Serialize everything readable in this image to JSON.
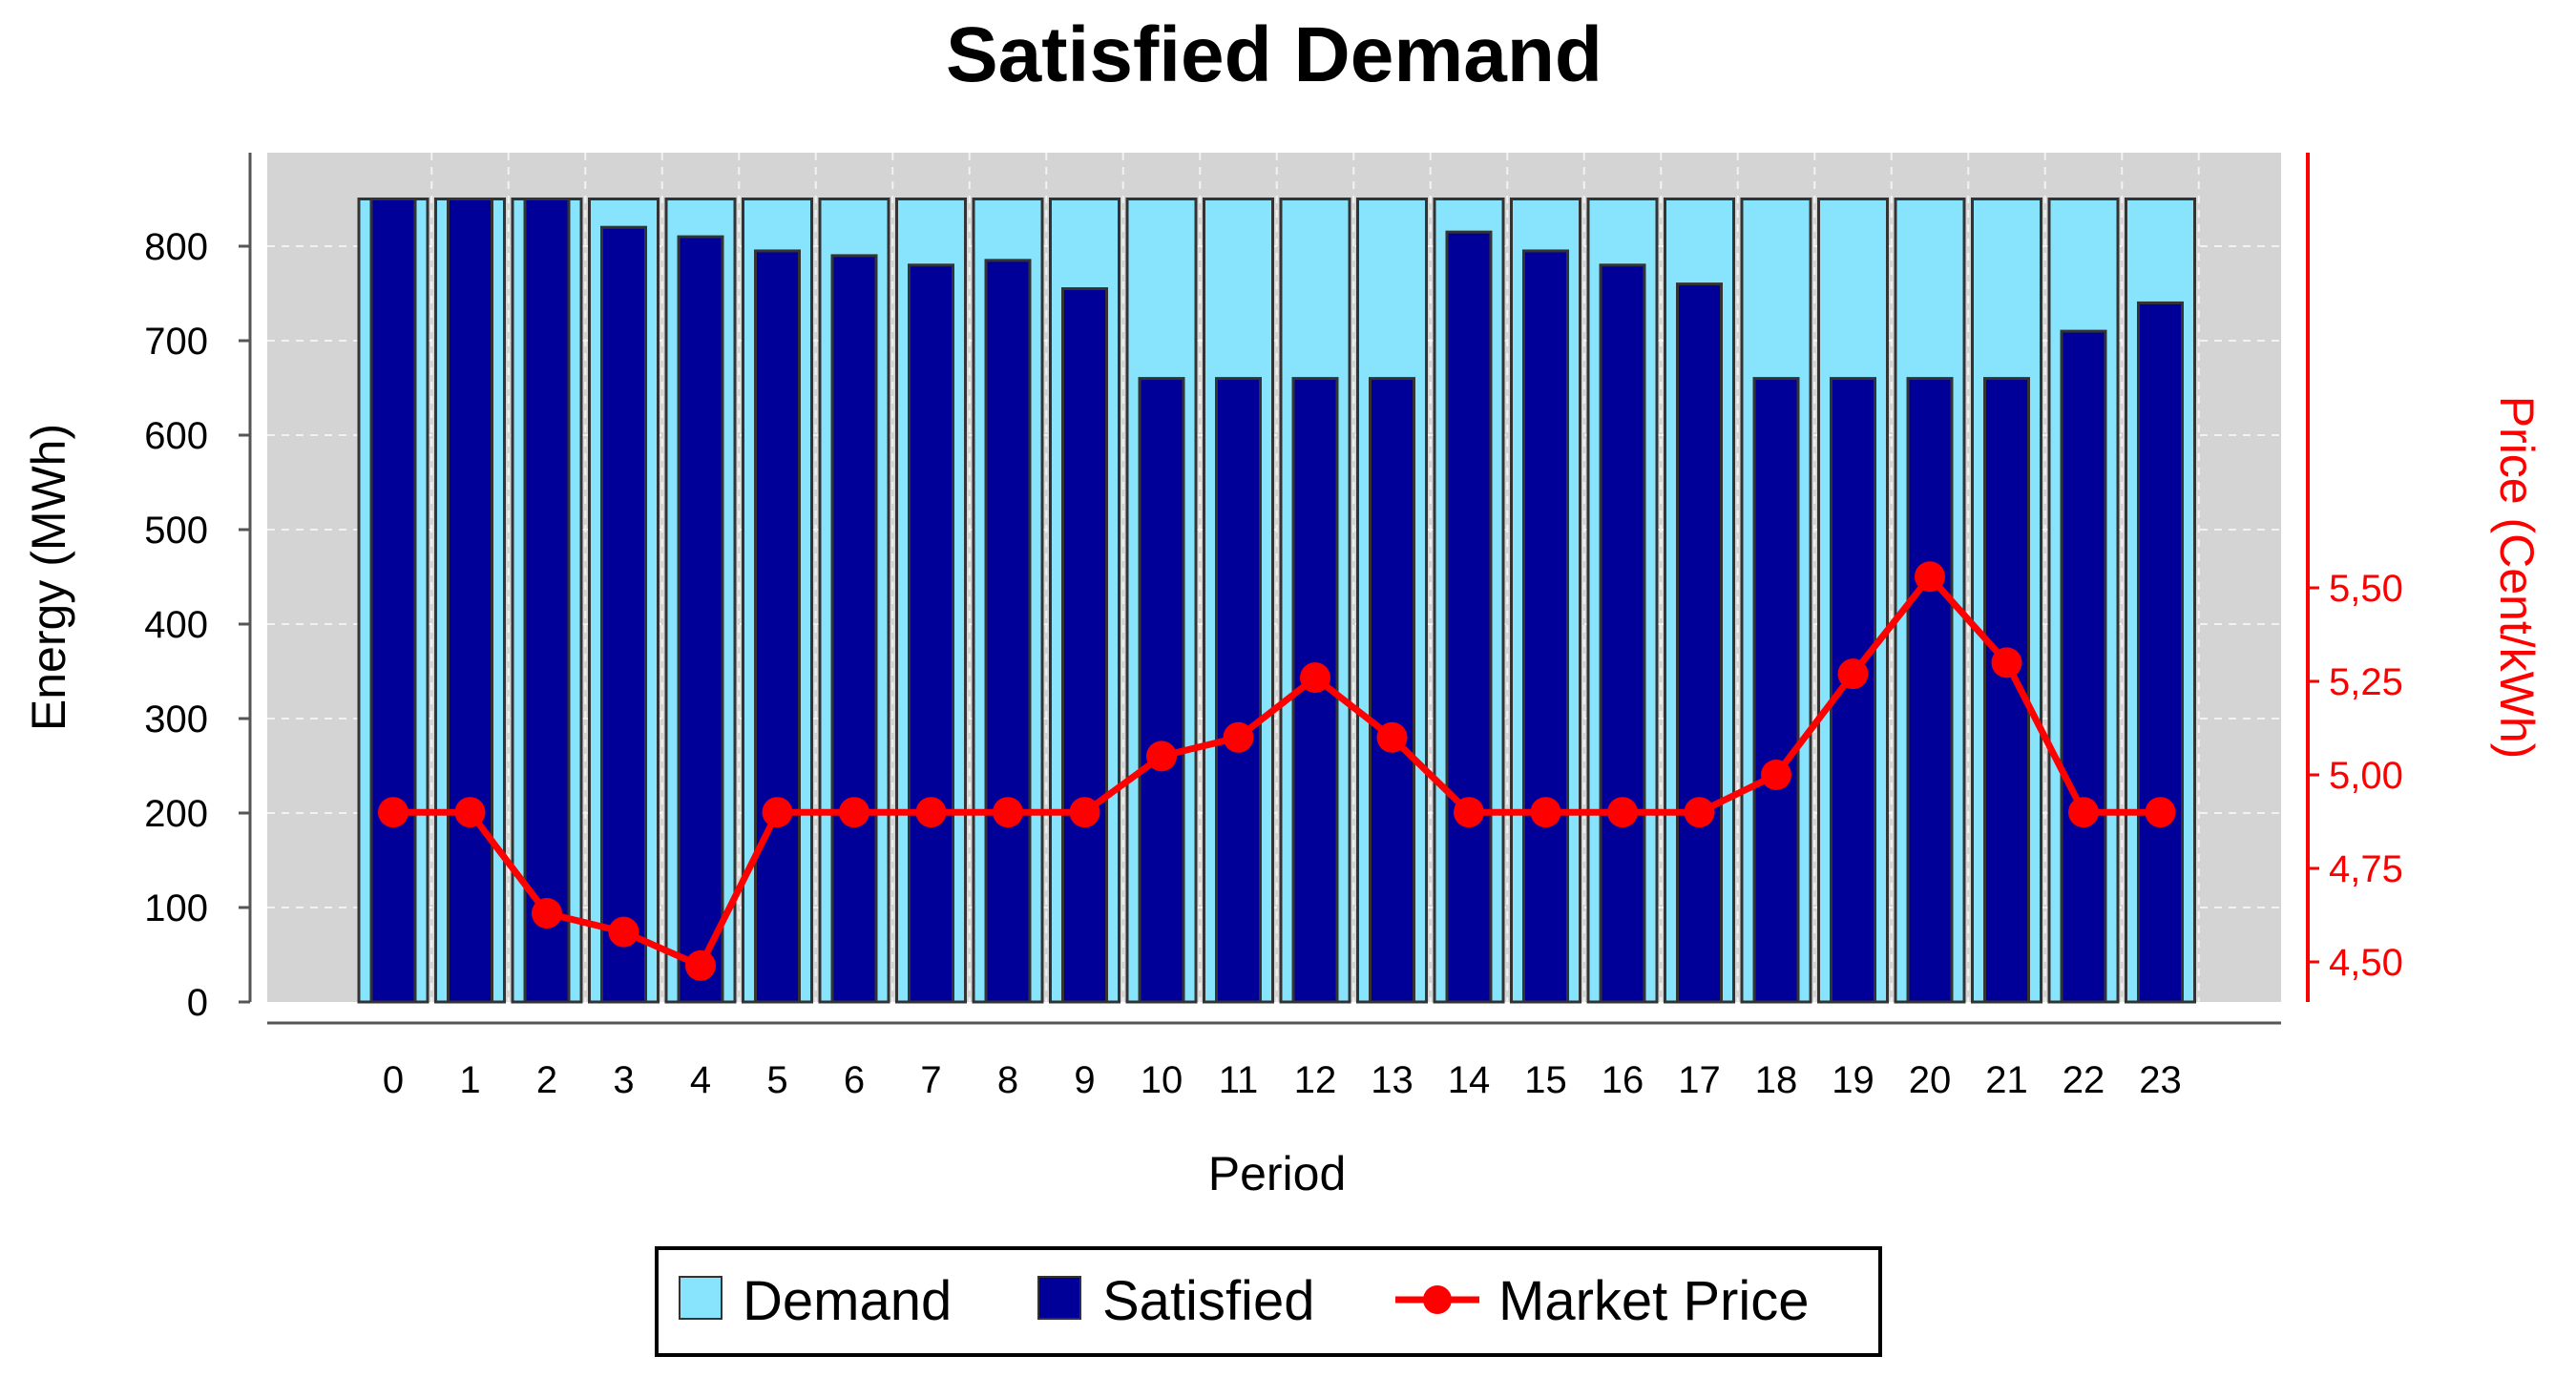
{
  "chart_data": {
    "type": "bar",
    "title": "Satisfied Demand",
    "xlabel": "Period",
    "ylabel": "Energy (MWh)",
    "ylabel_right": "Price (Cent/kWh)",
    "ylim": [
      0,
      850
    ],
    "ylim_right": [
      4.44,
      5.66
    ],
    "yticks": [
      0,
      100,
      200,
      300,
      400,
      500,
      600,
      700,
      800
    ],
    "yticks_right": [
      "4,50",
      "4,75",
      "5,00",
      "5,25",
      "5,50"
    ],
    "yticks_right_values": [
      4.5,
      4.75,
      5.0,
      5.25,
      5.5
    ],
    "categories": [
      "0",
      "1",
      "2",
      "3",
      "4",
      "5",
      "6",
      "7",
      "8",
      "9",
      "10",
      "11",
      "12",
      "13",
      "14",
      "15",
      "16",
      "17",
      "18",
      "19",
      "20",
      "21",
      "22",
      "23"
    ],
    "series": [
      {
        "name": "Demand",
        "kind": "bar",
        "color": "#88e4fc",
        "values": [
          850,
          850,
          850,
          850,
          850,
          850,
          850,
          850,
          850,
          850,
          850,
          850,
          850,
          850,
          850,
          850,
          850,
          850,
          850,
          850,
          850,
          850,
          850,
          850
        ]
      },
      {
        "name": "Satisfied",
        "kind": "bar",
        "color": "#000099",
        "values": [
          850,
          850,
          850,
          820,
          810,
          795,
          790,
          780,
          785,
          755,
          660,
          660,
          660,
          660,
          815,
          795,
          780,
          760,
          660,
          660,
          660,
          660,
          710,
          740
        ]
      },
      {
        "name": "Market Price",
        "kind": "line",
        "axis": "right",
        "color": "#ff0000",
        "values": [
          4.9,
          4.9,
          4.63,
          4.58,
          4.49,
          4.9,
          4.9,
          4.9,
          4.9,
          4.9,
          5.05,
          5.1,
          5.26,
          5.1,
          4.9,
          4.9,
          4.9,
          4.9,
          5.0,
          5.27,
          5.53,
          5.3,
          4.9,
          4.9
        ]
      }
    ],
    "grid": true,
    "legend": "bottom"
  }
}
